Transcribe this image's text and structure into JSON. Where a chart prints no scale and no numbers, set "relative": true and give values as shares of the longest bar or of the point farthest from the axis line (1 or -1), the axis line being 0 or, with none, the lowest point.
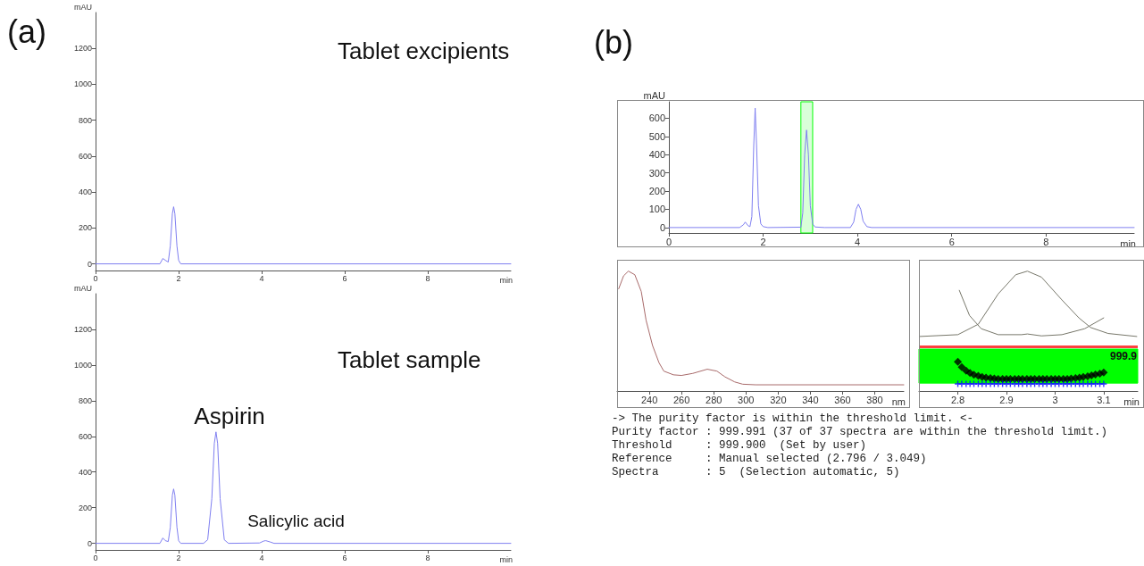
{
  "chart_data": [
    {
      "type": "line",
      "title": "Tablet excipients",
      "xlabel": "min",
      "ylabel": "mAU",
      "xlim": [
        0,
        10
      ],
      "ylim": [
        -37,
        1400
      ],
      "xticks": [
        0,
        2,
        4,
        6,
        8
      ],
      "yticks": [
        0,
        200,
        400,
        600,
        800,
        1000,
        1200
      ],
      "marker": "none",
      "annotations": [
        "(a)"
      ],
      "series": [
        {
          "color": "#7f7ff0",
          "x": [
            0,
            1.55,
            1.62,
            1.68,
            1.75,
            1.8,
            1.85,
            1.88,
            1.91,
            1.96,
            2.0,
            2.05,
            10
          ],
          "values": [
            0,
            0,
            30,
            20,
            10,
            100,
            280,
            318,
            280,
            100,
            20,
            0,
            0
          ]
        }
      ]
    },
    {
      "type": "line",
      "title": "Tablet sample",
      "xlabel": "min",
      "ylabel": "mAU",
      "xlim": [
        0,
        10
      ],
      "ylim": [
        -37,
        1400
      ],
      "xticks": [
        0,
        2,
        4,
        6,
        8
      ],
      "yticks": [
        0,
        200,
        400,
        600,
        800,
        1000,
        1200
      ],
      "marker": "none",
      "annotations": [
        {
          "text": "Aspirin",
          "x": 2.9,
          "y": 625
        },
        {
          "text": "Salicylic acid",
          "x": 4.1,
          "y": 15
        }
      ],
      "series": [
        {
          "color": "#7f7ff0",
          "x": [
            0,
            1.55,
            1.62,
            1.68,
            1.75,
            1.8,
            1.85,
            1.88,
            1.91,
            1.96,
            2.0,
            2.05,
            2.6,
            2.7,
            2.8,
            2.86,
            2.9,
            2.94,
            3.0,
            3.1,
            3.2,
            3.95,
            4.05,
            4.1,
            4.2,
            4.3,
            10
          ],
          "values": [
            0,
            0,
            30,
            15,
            10,
            90,
            270,
            305,
            270,
            90,
            15,
            0,
            0,
            20,
            250,
            560,
            625,
            560,
            250,
            20,
            0,
            2,
            13,
            15,
            8,
            0,
            0
          ]
        }
      ]
    },
    {
      "type": "line",
      "xlabel": "min",
      "ylabel": "mAU",
      "xlim": [
        0,
        9.87
      ],
      "ylim": [
        -30,
        690
      ],
      "xticks": [
        0,
        2,
        4,
        6,
        8
      ],
      "yticks": [
        0,
        100,
        200,
        300,
        400,
        500,
        600
      ],
      "marker": "none",
      "annotations": [
        "(b)"
      ],
      "bands": [
        {
          "axis": "x",
          "from": 2.8,
          "to": 3.05,
          "color": "#00ff00"
        }
      ],
      "series": [
        {
          "color": "#7f7ff0",
          "x": [
            0,
            1.5,
            1.58,
            1.62,
            1.68,
            1.72,
            1.76,
            1.8,
            1.83,
            1.86,
            1.9,
            1.95,
            2.0,
            2.1,
            2.8,
            2.84,
            2.88,
            2.92,
            2.96,
            3.0,
            3.05,
            3.1,
            3.3,
            3.85,
            3.92,
            3.97,
            4.02,
            4.07,
            4.12,
            4.2,
            4.3,
            9.87
          ],
          "values": [
            0,
            0,
            15,
            30,
            10,
            5,
            60,
            450,
            655,
            450,
            120,
            20,
            5,
            0,
            2,
            80,
            400,
            535,
            400,
            120,
            20,
            3,
            0,
            0,
            30,
            100,
            128,
            100,
            35,
            5,
            0,
            0
          ]
        }
      ]
    },
    {
      "type": "line",
      "relative": true,
      "xlabel": "nm",
      "xlim": [
        220,
        398
      ],
      "xticks": [
        240,
        260,
        280,
        300,
        320,
        340,
        360,
        380
      ],
      "marker": "none",
      "series": [
        {
          "color": "#a86a6a",
          "x": [
            221,
            224,
            227,
            231,
            235,
            238,
            242,
            246,
            249,
            255,
            260,
            267,
            276,
            282,
            287,
            293,
            298,
            306,
            398
          ],
          "values": [
            0.853,
            0.96,
            1.0,
            0.97,
            0.83,
            0.59,
            0.38,
            0.237,
            0.166,
            0.135,
            0.13,
            0.147,
            0.182,
            0.166,
            0.118,
            0.076,
            0.057,
            0.052,
            0.052
          ]
        }
      ]
    },
    {
      "type": "line",
      "relative": true,
      "xlabel": "min",
      "xlim": [
        2.72,
        3.17
      ],
      "xticks": [
        2.8,
        2.9,
        3,
        3.1
      ],
      "bands": [
        {
          "axis": "y",
          "from": 0.066,
          "to": 0.35,
          "color": "#00ff00"
        }
      ],
      "ref_lines": [
        {
          "axis": "y",
          "value": 0.367,
          "color": "#ff4040"
        }
      ],
      "annotations": [
        "999.9"
      ],
      "series": [
        {
          "color": "#77776a",
          "marker": "none",
          "x": [
            2.722,
            2.8,
            2.842,
            2.883,
            2.919,
            2.943,
            2.972,
            3.014,
            3.049,
            3.073,
            3.109,
            3.168
          ],
          "values": [
            0.455,
            0.47,
            0.557,
            0.81,
            0.97,
            1.0,
            0.95,
            0.76,
            0.61,
            0.53,
            0.48,
            0.455
          ]
        },
        {
          "color": "#77776a",
          "marker": "none",
          "x": [
            2.803,
            2.824,
            2.848,
            2.883,
            2.931,
            2.943,
            2.972,
            3.014,
            3.061,
            3.1
          ],
          "values": [
            0.84,
            0.63,
            0.52,
            0.47,
            0.47,
            0.476,
            0.46,
            0.47,
            0.52,
            0.61
          ]
        },
        {
          "type": "scatter",
          "color": "#000000",
          "marker": "diamond",
          "x": [
            2.8,
            2.808,
            2.817,
            2.825,
            2.833,
            2.842,
            2.85,
            2.858,
            2.867,
            2.875,
            2.883,
            2.892,
            2.9,
            2.908,
            2.917,
            2.925,
            2.933,
            2.942,
            2.95,
            2.958,
            2.967,
            2.975,
            2.983,
            2.992,
            3.0,
            3.008,
            3.017,
            3.025,
            3.033,
            3.042,
            3.05,
            3.058,
            3.067,
            3.075,
            3.083,
            3.092,
            3.1
          ],
          "values": [
            0.244,
            0.2,
            0.17,
            0.15,
            0.135,
            0.126,
            0.118,
            0.112,
            0.108,
            0.105,
            0.1,
            0.1,
            0.1,
            0.1,
            0.1,
            0.1,
            0.1,
            0.1,
            0.1,
            0.1,
            0.1,
            0.1,
            0.1,
            0.1,
            0.1,
            0.1,
            0.1,
            0.1,
            0.105,
            0.108,
            0.112,
            0.117,
            0.123,
            0.13,
            0.138,
            0.146,
            0.154
          ]
        },
        {
          "type": "scatter",
          "color": "#0000ff",
          "marker": "cross",
          "x": [
            2.8,
            2.808,
            2.817,
            2.825,
            2.833,
            2.842,
            2.85,
            2.858,
            2.867,
            2.875,
            2.883,
            2.892,
            2.9,
            2.908,
            2.917,
            2.925,
            2.933,
            2.942,
            2.95,
            2.958,
            2.967,
            2.975,
            2.983,
            2.992,
            3.0,
            3.008,
            3.017,
            3.025,
            3.033,
            3.042,
            3.05,
            3.058,
            3.067,
            3.075,
            3.083,
            3.092,
            3.1
          ],
          "values": [
            0.06,
            0.06,
            0.06,
            0.06,
            0.06,
            0.06,
            0.06,
            0.06,
            0.06,
            0.06,
            0.06,
            0.06,
            0.06,
            0.06,
            0.06,
            0.06,
            0.06,
            0.06,
            0.06,
            0.06,
            0.06,
            0.06,
            0.06,
            0.06,
            0.06,
            0.06,
            0.06,
            0.06,
            0.06,
            0.06,
            0.06,
            0.06,
            0.06,
            0.06,
            0.06,
            0.06,
            0.06
          ]
        }
      ]
    },
    {
      "type": "other",
      "annotations": [
        "-> The purity factor is within the threshold limit. <-",
        "Purity factor : 999.991 (37 of 37 spectra are within the threshold limit.)",
        "Threshold     : 999.900  (Set by user)",
        "Reference     : Manual selected (2.796 / 3.049)",
        "Spectra       : 5  (Selection automatic, 5)"
      ]
    }
  ]
}
